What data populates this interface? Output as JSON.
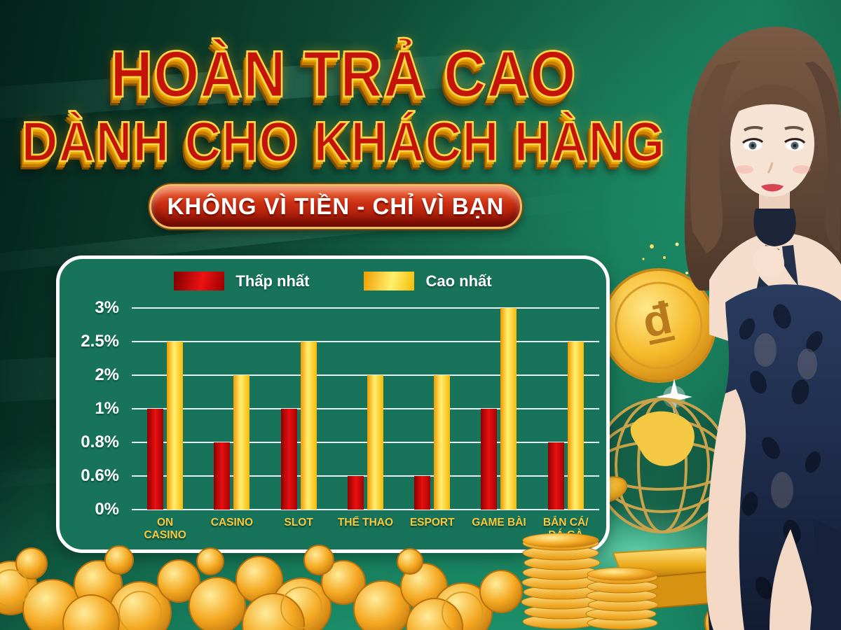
{
  "title": {
    "line1": "HOÀN TRẢ CAO",
    "line2": "DÀNH CHO KHÁCH HÀNG"
  },
  "ribbon": {
    "text": "KHÔNG VÌ TIỀN - CHỈ VÌ BẠN"
  },
  "chart_data": {
    "type": "bar",
    "title": "",
    "categories": [
      "ON\nCASINO",
      "CASINO",
      "SLOT",
      "THỂ THAO",
      "ESPORT",
      "GAME BÀI",
      "BẮN CÁ/\nĐÁ GÀ"
    ],
    "series": [
      {
        "name": "Thấp nhất",
        "color": "#e01111",
        "values": [
          "1%",
          "0.8%",
          "1%",
          "0.6%",
          "0.6%",
          "1%",
          "0.8%"
        ]
      },
      {
        "name": "Cao nhất",
        "color": "#ffd42a",
        "values": [
          "2.5%",
          "2%",
          "2.5%",
          "2%",
          "2%",
          "3%",
          "2.5%"
        ]
      }
    ],
    "y_ticks_bottom_to_top": [
      "0%",
      "0.6%",
      "0.8%",
      "1%",
      "2%",
      "2.5%",
      "3%"
    ],
    "y_axis_note": "ticks evenly spaced visually (non-linear scale)",
    "grid": true,
    "legend_position": "top-center"
  },
  "decor": {
    "coin_symbol": "₫",
    "panel_green": "#17745a",
    "background_teal": "#11573f",
    "gold": "#f5b914",
    "title_red": "#c41408"
  }
}
